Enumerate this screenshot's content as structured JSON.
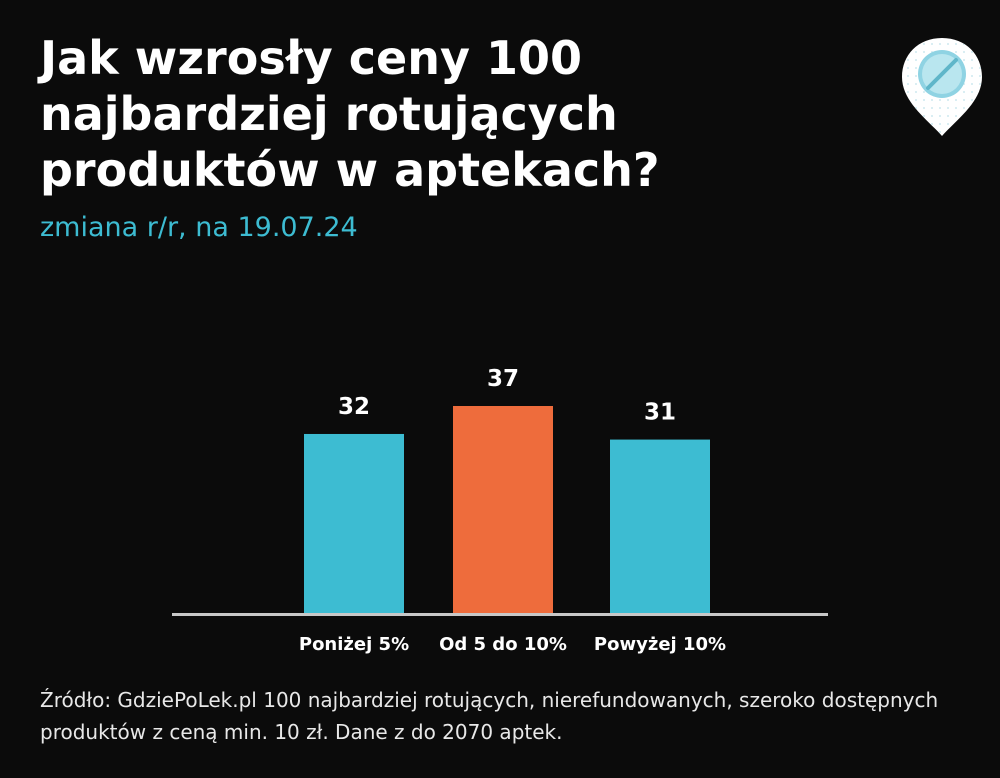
{
  "header": {
    "title": "Jak wzrosły ceny 100 najbardziej rotujących produktów w aptekach?",
    "subtitle": "zmiana r/r, na 19.07.24"
  },
  "logo": {
    "icon": "pill-pin-icon"
  },
  "chart_data": {
    "type": "bar",
    "categories": [
      "Poniżej 5%",
      "Od 5 do 10%",
      "Powyżej 10%"
    ],
    "values": [
      32,
      37,
      31
    ],
    "colors": [
      "#3dbcd2",
      "#ee6c3c",
      "#3dbcd2"
    ],
    "ylim": [
      0,
      37
    ],
    "grid": false,
    "axis_color": "#c8c8c8"
  },
  "footer": {
    "source": "Źródło: GdziePoLek.pl 100 najbardziej rotujących, nierefundowanych, szeroko dostępnych produktów z ceną min. 10 zł. Dane z do 2070 aptek."
  }
}
